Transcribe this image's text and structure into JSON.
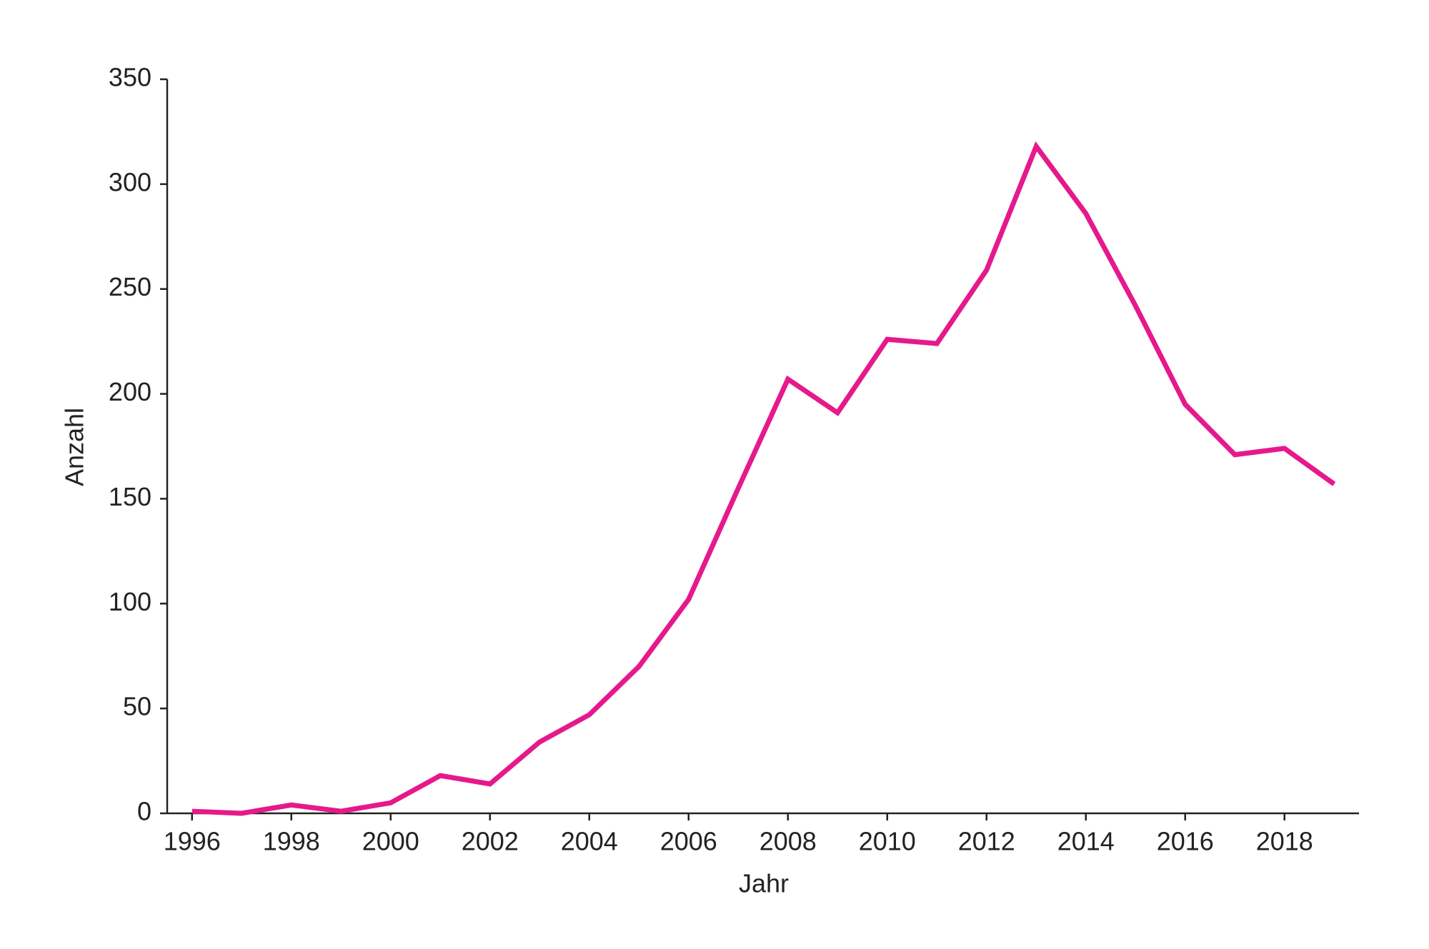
{
  "chart_data": {
    "type": "line",
    "x_label": "Jahr",
    "y_label": "Anzahl",
    "x": [
      1996,
      1997,
      1998,
      1999,
      2000,
      2001,
      2002,
      2003,
      2004,
      2005,
      2006,
      2007,
      2008,
      2009,
      2010,
      2011,
      2012,
      2013,
      2014,
      2015,
      2016,
      2017,
      2018,
      2019
    ],
    "series": [
      {
        "color": "#e6198c",
        "values": [
          1,
          0,
          4,
          1,
          5,
          18,
          14,
          34,
          47,
          70,
          102,
          155,
          207,
          191,
          226,
          224,
          259,
          318,
          286,
          242,
          195,
          171,
          174,
          157
        ]
      }
    ],
    "xlim": [
      1995.5,
      2019.5
    ],
    "xticks": [
      1996,
      1998,
      2000,
      2002,
      2004,
      2006,
      2008,
      2010,
      2012,
      2014,
      2016,
      2018
    ],
    "ylim": [
      0,
      350
    ],
    "yticks": [
      0,
      50,
      100,
      150,
      200,
      250,
      300,
      350
    ],
    "grid": false
  }
}
